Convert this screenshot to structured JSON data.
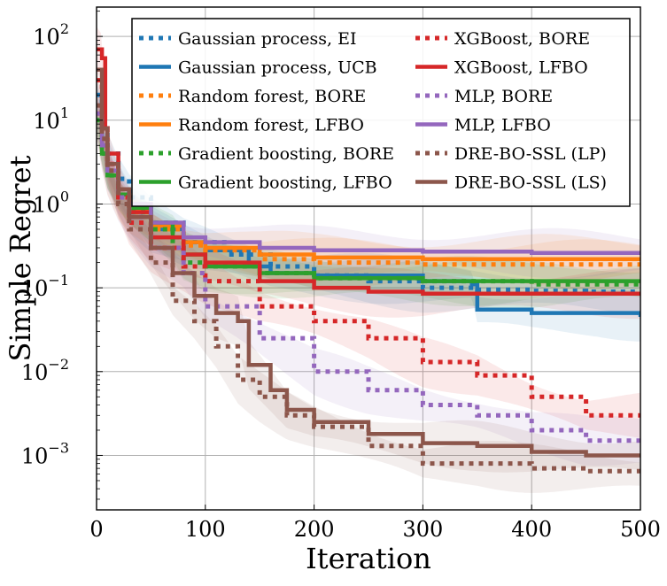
{
  "chart_data": {
    "type": "line",
    "title": "",
    "xlabel": "Iteration",
    "ylabel": "Simple Regret",
    "xlim": [
      0,
      500
    ],
    "ylim_log10": [
      -3.65,
      2.35
    ],
    "yscale": "log",
    "grid": true,
    "legend_position": "top-right",
    "x_ticks": [
      {
        "value": 0,
        "label": "0"
      },
      {
        "value": 100,
        "label": "100"
      },
      {
        "value": 200,
        "label": "200"
      },
      {
        "value": 300,
        "label": "300"
      },
      {
        "value": 400,
        "label": "400"
      },
      {
        "value": 500,
        "label": "500"
      }
    ],
    "y_ticks": [
      {
        "exp": 2,
        "base": "10",
        "sup": "2"
      },
      {
        "exp": 1,
        "base": "10",
        "sup": "1"
      },
      {
        "exp": 0,
        "base": "10",
        "sup": "0"
      },
      {
        "exp": -1,
        "base": "10",
        "sup": "−1"
      },
      {
        "exp": -2,
        "base": "10",
        "sup": "−2"
      },
      {
        "exp": -3,
        "base": "10",
        "sup": "−3"
      }
    ],
    "series": [
      {
        "name": "Gaussian process, EI",
        "color": "#1f77b4",
        "style": "dotted",
        "points": [
          [
            0,
            20
          ],
          [
            5,
            8
          ],
          [
            10,
            4
          ],
          [
            20,
            2
          ],
          [
            30,
            1.2
          ],
          [
            50,
            0.6
          ],
          [
            80,
            0.35
          ],
          [
            120,
            0.25
          ],
          [
            160,
            0.18
          ],
          [
            200,
            0.14
          ],
          [
            250,
            0.12
          ],
          [
            300,
            0.1
          ],
          [
            350,
            0.095
          ],
          [
            400,
            0.092
          ],
          [
            450,
            0.09
          ],
          [
            500,
            0.09
          ]
        ]
      },
      {
        "name": "Gaussian process, UCB",
        "color": "#1f77b4",
        "style": "solid",
        "points": [
          [
            0,
            15
          ],
          [
            5,
            6
          ],
          [
            10,
            3
          ],
          [
            20,
            1.5
          ],
          [
            30,
            0.9
          ],
          [
            50,
            0.5
          ],
          [
            80,
            0.35
          ],
          [
            100,
            0.28
          ],
          [
            140,
            0.18
          ],
          [
            160,
            0.15
          ],
          [
            200,
            0.14
          ],
          [
            300,
            0.12
          ],
          [
            345,
            0.11
          ],
          [
            350,
            0.055
          ],
          [
            400,
            0.05
          ],
          [
            460,
            0.05
          ],
          [
            500,
            0.045
          ]
        ]
      },
      {
        "name": "Random forest, BORE",
        "color": "#ff7f0e",
        "style": "dotted",
        "points": [
          [
            0,
            12
          ],
          [
            5,
            5
          ],
          [
            10,
            2.5
          ],
          [
            20,
            1.2
          ],
          [
            30,
            0.8
          ],
          [
            50,
            0.5
          ],
          [
            80,
            0.32
          ],
          [
            100,
            0.28
          ],
          [
            150,
            0.22
          ],
          [
            200,
            0.2
          ],
          [
            300,
            0.19
          ],
          [
            400,
            0.19
          ],
          [
            500,
            0.19
          ]
        ]
      },
      {
        "name": "Random forest, LFBO",
        "color": "#ff7f0e",
        "style": "solid",
        "points": [
          [
            0,
            12
          ],
          [
            5,
            5
          ],
          [
            10,
            2.5
          ],
          [
            20,
            1.3
          ],
          [
            30,
            0.85
          ],
          [
            50,
            0.55
          ],
          [
            80,
            0.35
          ],
          [
            100,
            0.3
          ],
          [
            150,
            0.25
          ],
          [
            200,
            0.23
          ],
          [
            300,
            0.22
          ],
          [
            400,
            0.22
          ],
          [
            500,
            0.22
          ]
        ]
      },
      {
        "name": "Gradient boosting, BORE",
        "color": "#2ca02c",
        "style": "dotted",
        "points": [
          [
            0,
            10
          ],
          [
            5,
            4
          ],
          [
            10,
            2.2
          ],
          [
            20,
            1.2
          ],
          [
            30,
            0.8
          ],
          [
            50,
            0.5
          ],
          [
            70,
            0.3
          ],
          [
            80,
            0.2
          ],
          [
            100,
            0.18
          ],
          [
            150,
            0.15
          ],
          [
            200,
            0.13
          ],
          [
            300,
            0.12
          ],
          [
            400,
            0.11
          ],
          [
            500,
            0.11
          ]
        ]
      },
      {
        "name": "Gradient boosting, LFBO",
        "color": "#2ca02c",
        "style": "solid",
        "points": [
          [
            0,
            10
          ],
          [
            5,
            4
          ],
          [
            10,
            2.2
          ],
          [
            20,
            1.3
          ],
          [
            30,
            0.9
          ],
          [
            50,
            0.6
          ],
          [
            70,
            0.4
          ],
          [
            80,
            0.25
          ],
          [
            100,
            0.18
          ],
          [
            150,
            0.15
          ],
          [
            200,
            0.13
          ],
          [
            300,
            0.12
          ],
          [
            400,
            0.12
          ],
          [
            500,
            0.12
          ]
        ]
      },
      {
        "name": "XGBoost, BORE",
        "color": "#d62728",
        "style": "dotted",
        "points": [
          [
            0,
            30
          ],
          [
            5,
            8
          ],
          [
            10,
            3
          ],
          [
            20,
            1.2
          ],
          [
            30,
            0.6
          ],
          [
            50,
            0.3
          ],
          [
            80,
            0.18
          ],
          [
            100,
            0.12
          ],
          [
            150,
            0.06
          ],
          [
            200,
            0.04
          ],
          [
            250,
            0.025
          ],
          [
            300,
            0.013
          ],
          [
            350,
            0.009
          ],
          [
            400,
            0.005
          ],
          [
            450,
            0.003
          ],
          [
            500,
            0.003
          ]
        ]
      },
      {
        "name": "XGBoost, LFBO",
        "color": "#d62728",
        "style": "solid",
        "points": [
          [
            0,
            70
          ],
          [
            5,
            55
          ],
          [
            8,
            8
          ],
          [
            10,
            4
          ],
          [
            20,
            1.5
          ],
          [
            30,
            0.8
          ],
          [
            50,
            0.4
          ],
          [
            80,
            0.25
          ],
          [
            100,
            0.2
          ],
          [
            150,
            0.12
          ],
          [
            200,
            0.1
          ],
          [
            250,
            0.09
          ],
          [
            300,
            0.085
          ],
          [
            400,
            0.085
          ],
          [
            500,
            0.085
          ]
        ]
      },
      {
        "name": "MLP, BORE",
        "color": "#9467bd",
        "style": "dotted",
        "points": [
          [
            0,
            12
          ],
          [
            5,
            5
          ],
          [
            10,
            2.5
          ],
          [
            20,
            1.2
          ],
          [
            30,
            0.7
          ],
          [
            50,
            0.3
          ],
          [
            80,
            0.15
          ],
          [
            100,
            0.06
          ],
          [
            150,
            0.025
          ],
          [
            200,
            0.01
          ],
          [
            250,
            0.006
          ],
          [
            300,
            0.004
          ],
          [
            350,
            0.003
          ],
          [
            400,
            0.002
          ],
          [
            450,
            0.0015
          ],
          [
            500,
            0.0015
          ]
        ]
      },
      {
        "name": "MLP, LFBO",
        "color": "#9467bd",
        "style": "solid",
        "points": [
          [
            0,
            12
          ],
          [
            5,
            5
          ],
          [
            10,
            2.5
          ],
          [
            20,
            1.5
          ],
          [
            30,
            1
          ],
          [
            50,
            0.6
          ],
          [
            80,
            0.4
          ],
          [
            100,
            0.35
          ],
          [
            150,
            0.3
          ],
          [
            200,
            0.28
          ],
          [
            300,
            0.27
          ],
          [
            400,
            0.26
          ],
          [
            500,
            0.25
          ]
        ]
      },
      {
        "name": "DRE-BO-SSL (LP)",
        "color": "#8c564b",
        "style": "dotted",
        "points": [
          [
            0,
            15
          ],
          [
            5,
            6
          ],
          [
            10,
            2.5
          ],
          [
            20,
            1
          ],
          [
            30,
            0.5
          ],
          [
            50,
            0.2
          ],
          [
            70,
            0.07
          ],
          [
            90,
            0.04
          ],
          [
            110,
            0.02
          ],
          [
            130,
            0.008
          ],
          [
            150,
            0.005
          ],
          [
            175,
            0.003
          ],
          [
            200,
            0.0022
          ],
          [
            250,
            0.0013
          ],
          [
            300,
            0.0008
          ],
          [
            350,
            0.0008
          ],
          [
            400,
            0.0007
          ],
          [
            450,
            0.00065
          ],
          [
            500,
            0.0006
          ]
        ]
      },
      {
        "name": "DRE-BO-SSL (LS)",
        "color": "#8c564b",
        "style": "solid",
        "points": [
          [
            0,
            40
          ],
          [
            5,
            8
          ],
          [
            10,
            3
          ],
          [
            20,
            1.5
          ],
          [
            30,
            0.7
          ],
          [
            50,
            0.3
          ],
          [
            70,
            0.15
          ],
          [
            90,
            0.08
          ],
          [
            110,
            0.05
          ],
          [
            130,
            0.04
          ],
          [
            140,
            0.012
          ],
          [
            160,
            0.006
          ],
          [
            175,
            0.0035
          ],
          [
            200,
            0.0025
          ],
          [
            250,
            0.0018
          ],
          [
            300,
            0.0014
          ],
          [
            350,
            0.0013
          ],
          [
            400,
            0.0011
          ],
          [
            450,
            0.001
          ],
          [
            500,
            0.001
          ]
        ]
      }
    ]
  }
}
